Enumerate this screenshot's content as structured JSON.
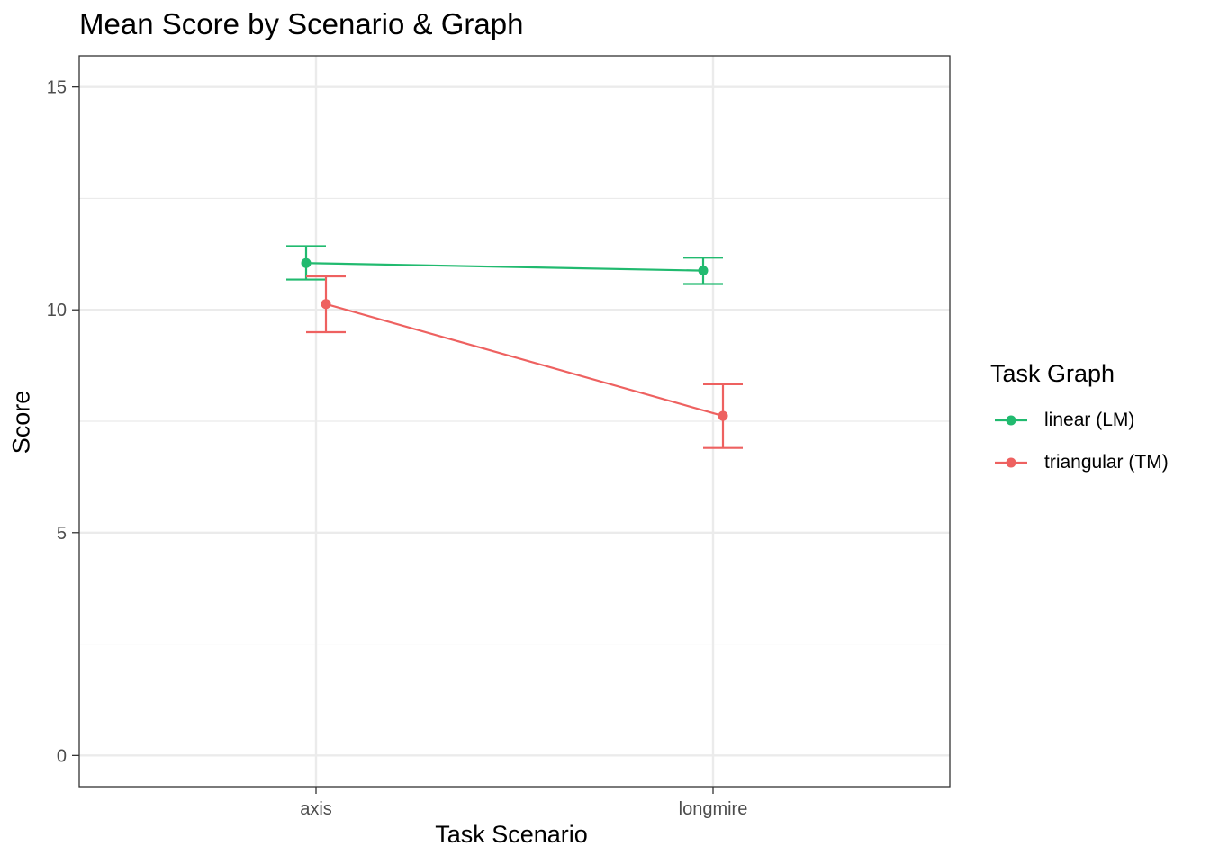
{
  "chart_data": {
    "type": "line",
    "title": "Mean Score by Scenario & Graph",
    "xlabel": "Task Scenario",
    "ylabel": "Score",
    "categories": [
      "axis",
      "longmire"
    ],
    "ylim": [
      -0.7,
      15.7
    ],
    "yticks": [
      0,
      5,
      10,
      15
    ],
    "ytick_labels": [
      "0",
      "5",
      "10",
      "15"
    ],
    "grid": true,
    "legend": {
      "title": "Task Graph",
      "placement": "right"
    },
    "series": [
      {
        "name": "linear (LM)",
        "color": "#21BA6F",
        "values": [
          11.05,
          10.88
        ],
        "error_low": [
          10.68,
          10.58
        ],
        "error_high": [
          11.43,
          11.17
        ]
      },
      {
        "name": "triangular (TM)",
        "color": "#EE6160",
        "values": [
          10.13,
          7.62
        ],
        "error_low": [
          9.5,
          6.9
        ],
        "error_high": [
          10.75,
          8.33
        ]
      }
    ]
  }
}
